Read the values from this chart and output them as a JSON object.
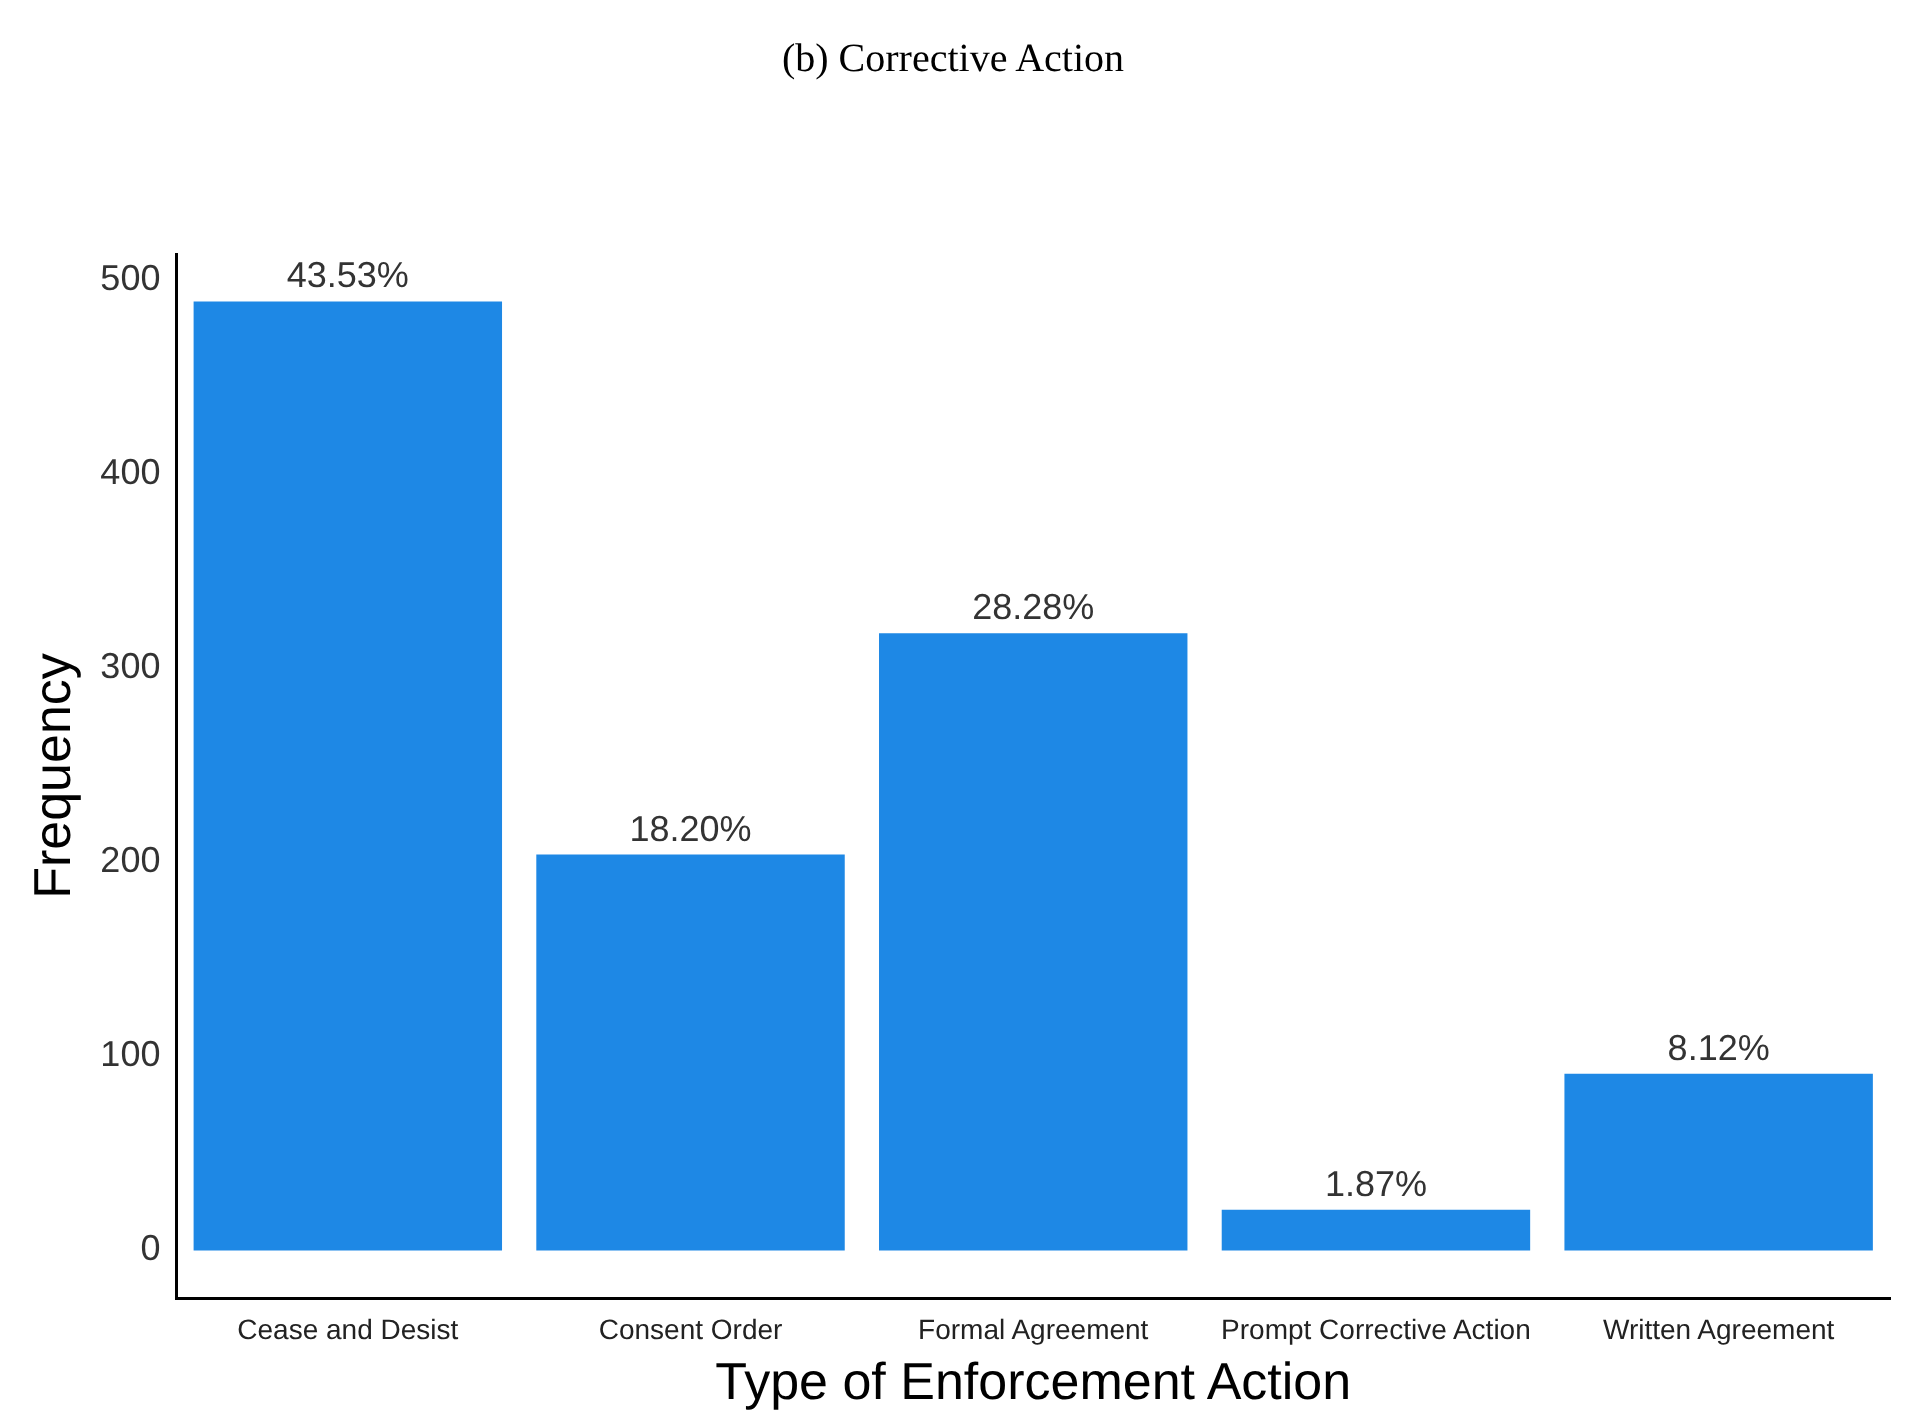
{
  "chart_data": {
    "type": "bar",
    "title": "(b) Corrective Action",
    "xlabel": "Type of Enforcement Action",
    "ylabel": "Frequency",
    "categories": [
      "Cease and Desist",
      "Consent Order",
      "Formal Agreement",
      "Prompt Corrective Action",
      "Written Agreement"
    ],
    "values": [
      489,
      204,
      318,
      21,
      91
    ],
    "annotations": [
      {
        "text": "43.53%",
        "x": "Cease and Desist",
        "y": 489
      },
      {
        "text": "18.20%",
        "x": "Consent Order",
        "y": 204
      },
      {
        "text": "28.28%",
        "x": "Formal Agreement",
        "y": 318
      },
      {
        "text": "1.87%",
        "x": "Prompt Corrective Action",
        "y": 21
      },
      {
        "text": "8.12%",
        "x": "Written Agreement",
        "y": 91
      }
    ],
    "color": "#1e88e5",
    "ylim": [
      -24.5,
      513.5
    ],
    "yticks": [
      0,
      100,
      200,
      300,
      400,
      500
    ],
    "grid": false,
    "legend": false
  }
}
